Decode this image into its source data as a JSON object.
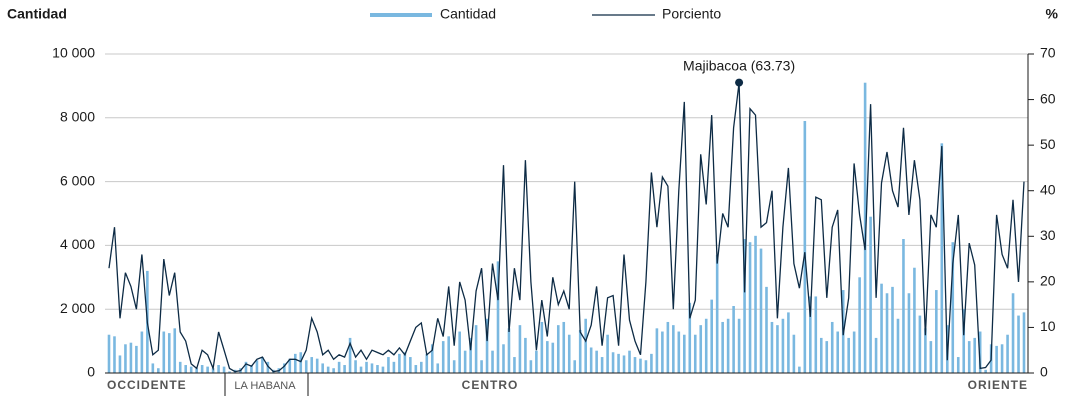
{
  "chart_data": {
    "type": "bar_line",
    "y_label": "Cantidad",
    "y2_label": "%",
    "annotation": "Majibacoa (63.73)",
    "regions": [
      "OCCIDENTE",
      "LA HABANA",
      "CENTRO",
      "ORIENTE"
    ],
    "ylim": [
      0,
      10000
    ],
    "yticks": [
      0,
      {
        "value": 2000,
        "label": "2 000"
      },
      {
        "value": 4000,
        "label": "4 000"
      },
      {
        "value": 6000,
        "label": "6 000"
      },
      {
        "value": 8000,
        "label": "8 000"
      },
      {
        "value": 10000,
        "label": "10 000"
      }
    ],
    "y2lim": [
      0,
      70
    ],
    "y2ticks": [
      0,
      10,
      20,
      30,
      40,
      50,
      60,
      70
    ],
    "grid": true,
    "legend": "top",
    "series": [
      {
        "name": "Cantidad",
        "type": "bar",
        "color": "#7ab8e0",
        "values": [
          1200,
          1150,
          550,
          900,
          950,
          850,
          1300,
          3200,
          300,
          150,
          1300,
          1250,
          1400,
          350,
          250,
          200,
          150,
          250,
          200,
          150,
          250,
          200,
          50,
          100,
          150,
          350,
          250,
          400,
          500,
          350,
          100,
          150,
          300,
          450,
          600,
          650,
          400,
          500,
          450,
          300,
          200,
          150,
          350,
          250,
          1100,
          400,
          200,
          350,
          300,
          250,
          200,
          500,
          350,
          600,
          650,
          500,
          250,
          350,
          600,
          900,
          300,
          1000,
          1150,
          400,
          1300,
          700,
          1100,
          1500,
          400,
          1700,
          700,
          3500,
          900,
          1400,
          500,
          1500,
          1100,
          400,
          700,
          1600,
          1000,
          950,
          1500,
          1600,
          1200,
          400,
          1350,
          1700,
          800,
          700,
          500,
          1200,
          650,
          600,
          550,
          700,
          500,
          450,
          400,
          600,
          1400,
          1300,
          1600,
          1500,
          1300,
          1200,
          2200,
          1200,
          1500,
          1700,
          2300,
          3700,
          1600,
          1700,
          2100,
          1700,
          4200,
          4100,
          4300,
          3900,
          2700,
          1600,
          1500,
          1700,
          1900,
          1200,
          200,
          7900,
          2400,
          2400,
          1100,
          1000,
          1600,
          1300,
          2600,
          1100,
          1300,
          3000,
          9100,
          4900,
          1100,
          2800,
          2500,
          2700,
          1700,
          4200,
          2500,
          3300,
          1800,
          1400,
          1000,
          2600,
          7200,
          1500,
          4100,
          500,
          2000,
          1000,
          1100,
          1300,
          100,
          900,
          850,
          900,
          1200,
          2500,
          1800,
          1900
        ]
      },
      {
        "name": "Porciento",
        "type": "line",
        "axis": "y2",
        "color": "#0d2b45",
        "values": [
          23,
          32,
          12,
          22,
          19,
          14,
          26,
          11,
          4,
          5,
          25,
          17,
          22,
          9,
          7,
          2,
          1,
          5,
          4,
          1,
          9,
          5,
          1,
          0.3,
          0.5,
          2,
          1.5,
          3,
          3.5,
          1.5,
          0.3,
          0.5,
          1.5,
          3,
          3,
          2.5,
          5,
          12,
          9,
          4,
          5,
          3,
          4,
          3.5,
          6.5,
          3.5,
          5,
          3,
          5,
          4.5,
          4,
          5,
          4,
          5.5,
          4,
          7,
          10,
          11,
          4,
          5,
          12,
          8,
          19,
          6,
          20,
          16,
          5,
          18,
          23,
          7,
          24,
          16,
          45.6,
          9,
          23,
          16,
          46.7,
          20,
          5,
          16,
          8,
          21,
          15,
          18,
          14,
          42,
          9,
          7,
          10.5,
          19,
          6,
          16.5,
          17,
          6,
          26,
          11.6,
          7,
          4,
          20,
          44,
          32,
          43,
          41,
          14,
          40,
          59.5,
          12,
          16,
          48,
          37,
          56.6,
          24,
          35,
          32,
          53.8,
          63.73,
          17.7,
          58,
          56.6,
          32,
          33,
          40,
          12,
          32,
          45,
          24,
          18.6,
          26.5,
          12.3,
          38.6,
          38,
          16.5,
          32,
          35.8,
          8.3,
          16.5,
          46,
          34.7,
          27,
          59,
          16.5,
          41.7,
          48.5,
          40,
          36.4,
          53.8,
          34.7,
          46.7,
          38,
          8.3,
          34.7,
          32,
          49.8,
          2.8,
          24,
          34.7,
          8.3,
          28.5,
          23.7,
          1,
          1.2,
          2.8,
          34.7,
          26,
          23,
          38,
          20,
          42
        ]
      }
    ]
  }
}
